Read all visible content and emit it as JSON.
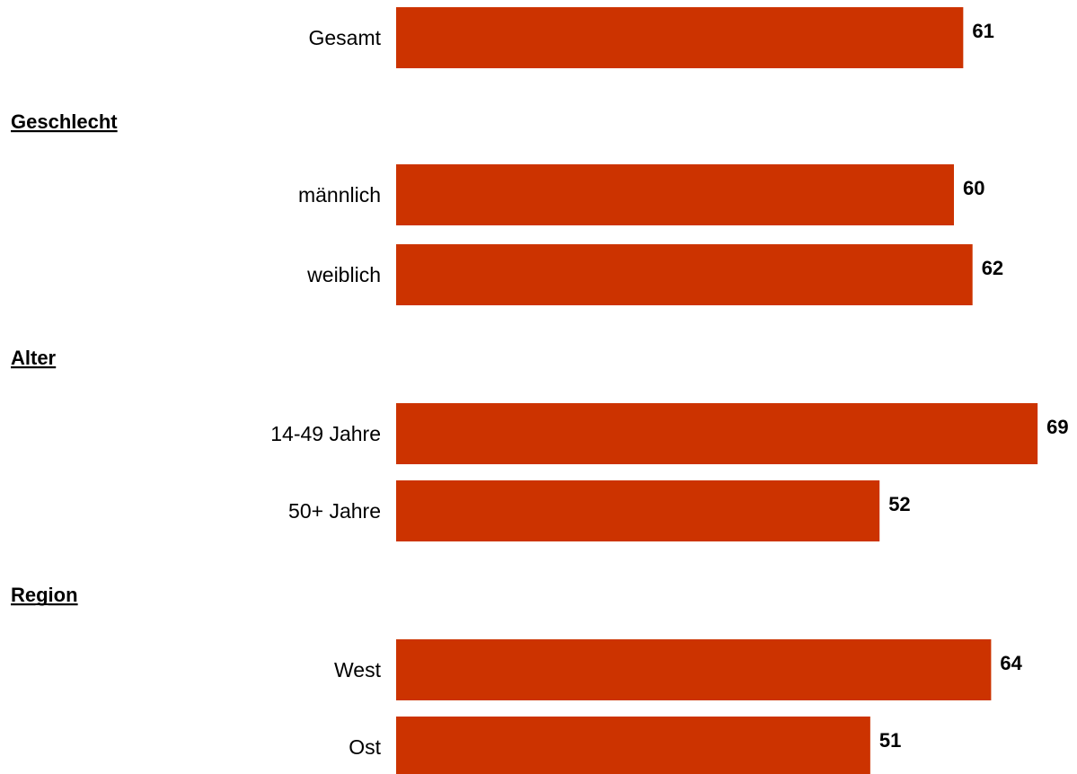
{
  "chart_data": {
    "type": "bar",
    "orientation": "horizontal",
    "bar_color": "#cc3300",
    "value_labels_shown": true,
    "axes_shown": false,
    "grid": false,
    "rows": [
      {
        "kind": "bar",
        "label": "Gesamt",
        "value": 61
      },
      {
        "kind": "group",
        "label": "Geschlecht"
      },
      {
        "kind": "bar",
        "label": "männlich",
        "value": 60
      },
      {
        "kind": "bar",
        "label": "weiblich",
        "value": 62
      },
      {
        "kind": "group",
        "label": "Alter"
      },
      {
        "kind": "bar",
        "label": "14-49 Jahre",
        "value": 69
      },
      {
        "kind": "bar",
        "label": "50+ Jahre",
        "value": 52
      },
      {
        "kind": "group",
        "label": "Region"
      },
      {
        "kind": "bar",
        "label": "West",
        "value": 64
      },
      {
        "kind": "bar",
        "label": "Ost",
        "value": 51
      }
    ]
  }
}
